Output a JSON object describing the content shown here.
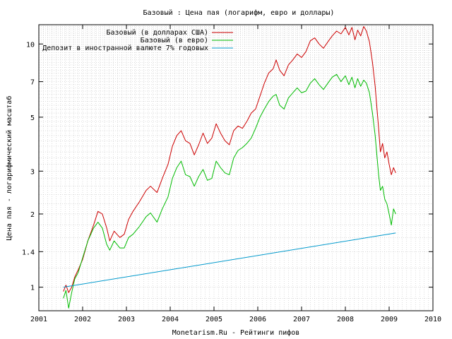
{
  "chart_data": {
    "type": "line",
    "title": "Базовый : Цена пая (логарифм, евро и доллары)",
    "xlabel": "Monetarism.Ru - Рейтинги пифов",
    "ylabel": "Цена пая - логарифмический масштаб",
    "x_scale": "linear",
    "y_scale": "log",
    "xlim": [
      2001,
      2010
    ],
    "ylim": [
      0.8,
      12
    ],
    "x_ticks": [
      {
        "value": 2001,
        "label": "2001"
      },
      {
        "value": 2002,
        "label": "2002"
      },
      {
        "value": 2003,
        "label": "2003"
      },
      {
        "value": 2004,
        "label": "2004"
      },
      {
        "value": 2005,
        "label": "2005"
      },
      {
        "value": 2006,
        "label": "2006"
      },
      {
        "value": 2007,
        "label": "2007"
      },
      {
        "value": 2008,
        "label": "2008"
      },
      {
        "value": 2009,
        "label": "2009"
      },
      {
        "value": 2010,
        "label": "2010"
      }
    ],
    "y_ticks": [
      {
        "value": 1,
        "label": "1"
      },
      {
        "value": 1.4,
        "label": "1.4"
      },
      {
        "value": 2,
        "label": "2"
      },
      {
        "value": 3,
        "label": "3"
      },
      {
        "value": 5,
        "label": "5"
      },
      {
        "value": 7,
        "label": "7"
      },
      {
        "value": 10,
        "label": "10"
      }
    ],
    "grid": true,
    "legend_position": "top-left",
    "series": [
      {
        "name": "Базовый (в долларах США)",
        "color": "#cc0000",
        "x": [
          2001.56,
          2001.62,
          2001.68,
          2001.75,
          2001.82,
          2001.9,
          2002.0,
          2002.12,
          2002.25,
          2002.35,
          2002.45,
          2002.55,
          2002.62,
          2002.72,
          2002.85,
          2002.95,
          2003.05,
          2003.15,
          2003.3,
          2003.45,
          2003.55,
          2003.7,
          2003.82,
          2003.95,
          2004.05,
          2004.15,
          2004.25,
          2004.35,
          2004.45,
          2004.55,
          2004.65,
          2004.75,
          2004.85,
          2004.95,
          2005.05,
          2005.15,
          2005.25,
          2005.35,
          2005.45,
          2005.55,
          2005.65,
          2005.75,
          2005.85,
          2005.95,
          2006.05,
          2006.15,
          2006.25,
          2006.35,
          2006.42,
          2006.5,
          2006.6,
          2006.7,
          2006.8,
          2006.9,
          2007.0,
          2007.1,
          2007.2,
          2007.3,
          2007.4,
          2007.5,
          2007.6,
          2007.7,
          2007.8,
          2007.9,
          2008.0,
          2008.08,
          2008.15,
          2008.22,
          2008.28,
          2008.35,
          2008.42,
          2008.48,
          2008.55,
          2008.62,
          2008.68,
          2008.72,
          2008.76,
          2008.8,
          2008.85,
          2008.9,
          2008.95,
          2009.0,
          2009.05,
          2009.1,
          2009.15
        ],
        "values": [
          0.96,
          1.02,
          0.95,
          1.0,
          1.1,
          1.18,
          1.3,
          1.55,
          1.8,
          2.05,
          2.0,
          1.75,
          1.55,
          1.7,
          1.6,
          1.65,
          1.9,
          2.05,
          2.25,
          2.5,
          2.6,
          2.45,
          2.8,
          3.2,
          3.8,
          4.2,
          4.4,
          4.0,
          3.9,
          3.5,
          3.85,
          4.3,
          3.9,
          4.1,
          4.7,
          4.3,
          4.0,
          3.85,
          4.4,
          4.6,
          4.5,
          4.8,
          5.2,
          5.4,
          6.1,
          6.9,
          7.6,
          7.9,
          8.6,
          7.8,
          7.4,
          8.2,
          8.6,
          9.1,
          8.8,
          9.3,
          10.3,
          10.6,
          10.0,
          9.6,
          10.2,
          10.8,
          11.3,
          11.0,
          11.7,
          10.9,
          11.7,
          10.4,
          11.4,
          10.8,
          11.8,
          11.3,
          10.2,
          8.4,
          6.7,
          5.5,
          4.5,
          3.6,
          3.9,
          3.4,
          3.6,
          3.2,
          2.9,
          3.1,
          2.95
        ]
      },
      {
        "name": "Базовый (в евро)",
        "color": "#00bb00",
        "x": [
          2001.56,
          2001.62,
          2001.68,
          2001.75,
          2001.82,
          2001.9,
          2002.0,
          2002.12,
          2002.25,
          2002.35,
          2002.45,
          2002.55,
          2002.62,
          2002.72,
          2002.85,
          2002.95,
          2003.05,
          2003.15,
          2003.3,
          2003.45,
          2003.55,
          2003.7,
          2003.82,
          2003.95,
          2004.05,
          2004.15,
          2004.25,
          2004.35,
          2004.45,
          2004.55,
          2004.65,
          2004.75,
          2004.85,
          2004.95,
          2005.05,
          2005.15,
          2005.25,
          2005.35,
          2005.45,
          2005.55,
          2005.65,
          2005.75,
          2005.85,
          2005.95,
          2006.05,
          2006.15,
          2006.25,
          2006.35,
          2006.42,
          2006.5,
          2006.6,
          2006.7,
          2006.8,
          2006.9,
          2007.0,
          2007.1,
          2007.2,
          2007.3,
          2007.4,
          2007.5,
          2007.6,
          2007.7,
          2007.8,
          2007.9,
          2008.0,
          2008.08,
          2008.15,
          2008.22,
          2008.28,
          2008.35,
          2008.42,
          2008.48,
          2008.55,
          2008.62,
          2008.68,
          2008.72,
          2008.76,
          2008.8,
          2008.85,
          2008.9,
          2008.95,
          2009.0,
          2009.05,
          2009.1,
          2009.15
        ],
        "values": [
          0.9,
          0.97,
          0.82,
          0.95,
          1.08,
          1.15,
          1.32,
          1.55,
          1.75,
          1.85,
          1.75,
          1.5,
          1.42,
          1.55,
          1.45,
          1.45,
          1.6,
          1.65,
          1.78,
          1.95,
          2.02,
          1.85,
          2.1,
          2.35,
          2.8,
          3.1,
          3.3,
          2.9,
          2.85,
          2.6,
          2.85,
          3.05,
          2.75,
          2.8,
          3.3,
          3.1,
          2.95,
          2.9,
          3.4,
          3.65,
          3.75,
          3.9,
          4.1,
          4.5,
          5.0,
          5.4,
          5.8,
          6.1,
          6.2,
          5.6,
          5.4,
          6.0,
          6.3,
          6.6,
          6.3,
          6.4,
          6.9,
          7.2,
          6.8,
          6.5,
          6.9,
          7.3,
          7.5,
          7.0,
          7.4,
          6.8,
          7.3,
          6.6,
          7.2,
          6.7,
          7.1,
          6.9,
          6.3,
          5.2,
          4.2,
          3.5,
          2.9,
          2.5,
          2.6,
          2.3,
          2.2,
          2.0,
          1.8,
          2.1,
          2.0
        ]
      },
      {
        "name": "Депозит в иностранной валюте 7% годовых",
        "color": "#0099cc",
        "x": [
          2001.56,
          2009.15
        ],
        "values": [
          1.0,
          1.67
        ]
      }
    ]
  }
}
